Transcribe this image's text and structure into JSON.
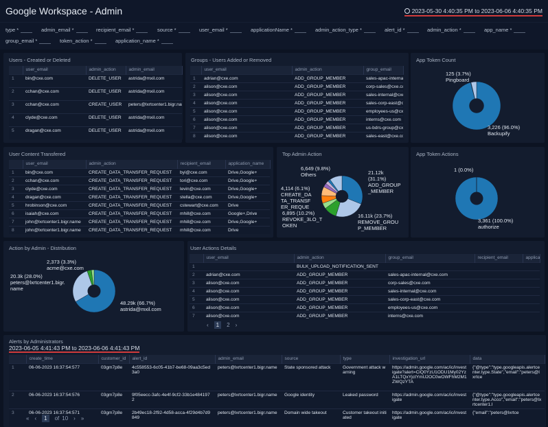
{
  "header": {
    "title": "Google Workspace - Admin",
    "time_range": "2023-05-30 4:40:35 PM to 2023-06-06 4:40:35 PM",
    "clock_icon": "clock-icon"
  },
  "filters": [
    "type *",
    "admin_email *",
    "recipient_email *",
    "source *",
    "user_email *",
    "applicationName *",
    "admin_action_type *",
    "alert_id *",
    "admin_action *",
    "app_name *",
    "group_email *",
    "token_action *",
    "application_name *"
  ],
  "users_created_deleted": {
    "title": "Users - Created or Deleted",
    "columns": [
      "",
      "user_email",
      "admin_action",
      "admin_email"
    ],
    "rows": [
      [
        "1",
        "bin@cxe.com",
        "DELETE_USER",
        "astrida@mxil.com"
      ],
      [
        "2",
        "cchan@cxe.com",
        "DELETE_USER",
        "astrida@mxil.com"
      ],
      [
        "3",
        "cchan@cxe.com",
        "CREATE_USER",
        "peters@lxrtcenter1.bigr.name"
      ],
      [
        "4",
        "clyde@cxe.com",
        "DELETE_USER",
        "astrida@mxil.com"
      ],
      [
        "5",
        "dragan@cxe.com",
        "DELETE_USER",
        "astrida@mxil.com"
      ]
    ]
  },
  "groups_added_removed": {
    "title": "Groups - Users Added or Removed",
    "columns": [
      "",
      "user_email",
      "admin_action",
      "group_email"
    ],
    "rows": [
      [
        "1",
        "adrian@cxe.com",
        "ADD_GROUP_MEMBER",
        "sales-apac-internal"
      ],
      [
        "2",
        "alison@cxe.com",
        "ADD_GROUP_MEMBER",
        "corp-sales@cxe.co"
      ],
      [
        "3",
        "alison@cxe.com",
        "ADD_GROUP_MEMBER",
        "sales-internal@cxe"
      ],
      [
        "4",
        "alison@cxe.com",
        "ADD_GROUP_MEMBER",
        "sales-corp-east@c"
      ],
      [
        "5",
        "alison@cxe.com",
        "ADD_GROUP_MEMBER",
        "employees-us@cxe"
      ],
      [
        "6",
        "alison@cxe.com",
        "ADD_GROUP_MEMBER",
        "interns@cxe.com"
      ],
      [
        "7",
        "alison@cxe.com",
        "ADD_GROUP_MEMBER",
        "us-bdrs-group@cxe"
      ],
      [
        "8",
        "alison@cxe.com",
        "ADD_GROUP_MEMBER",
        "sales-east@cxe.co"
      ]
    ]
  },
  "user_content_transferred": {
    "title": "User Content Transfered",
    "columns": [
      "",
      "user_email",
      "admin_action",
      "recipient_email",
      "application_name"
    ],
    "rows": [
      [
        "1",
        "bin@cxe.com",
        "CREATE_DATA_TRANSFER_REQUEST",
        "byi@cxe.com",
        "Drive,Google+"
      ],
      [
        "2",
        "cchan@cxe.com",
        "CREATE_DATA_TRANSFER_REQUEST",
        "tori@cxe.com",
        "Drive,Google+"
      ],
      [
        "3",
        "clyde@cxe.com",
        "CREATE_DATA_TRANSFER_REQUEST",
        "levin@cxe.com",
        "Drive,Google+"
      ],
      [
        "4",
        "dragan@cxe.com",
        "CREATE_DATA_TRANSFER_REQUEST",
        "stella@cxe.com",
        "Drive,Google+"
      ],
      [
        "5",
        "hrobinson@cxe.com",
        "CREATE_DATA_TRANSFER_REQUEST",
        "cstewart@cxe.com",
        "Drive"
      ],
      [
        "6",
        "isaiah@cxe.com",
        "CREATE_DATA_TRANSFER_REQUEST",
        "mhill@cxe.com",
        "Google+,Drive"
      ],
      [
        "7",
        "john@lxrtcenter1.bigr.name",
        "CREATE_DATA_TRANSFER_REQUEST",
        "mhill@cxe.com",
        "Drive,Google+"
      ],
      [
        "8",
        "john@lxrtcenter1.bigr.name",
        "CREATE_DATA_TRANSFER_REQUEST",
        "mhill@cxe.com",
        "Drive"
      ]
    ]
  },
  "user_actions_details": {
    "title": "User Actions Details",
    "columns": [
      "",
      "user_email",
      "admin_action",
      "group_email",
      "recipient_email",
      "applica"
    ],
    "rows": [
      [
        "1",
        "",
        "BULK_UPLOAD_NOTIFICATION_SENT",
        "",
        "",
        ""
      ],
      [
        "2",
        "adrian@cxe.com",
        "ADD_GROUP_MEMBER",
        "sales-apac-internal@cxe.com",
        "",
        ""
      ],
      [
        "3",
        "alison@cxe.com",
        "ADD_GROUP_MEMBER",
        "corp-sales@cxe.com",
        "",
        ""
      ],
      [
        "4",
        "alison@cxe.com",
        "ADD_GROUP_MEMBER",
        "sales-internal@cxe.com",
        "",
        ""
      ],
      [
        "5",
        "alison@cxe.com",
        "ADD_GROUP_MEMBER",
        "sales-corp-east@cxe.com",
        "",
        ""
      ],
      [
        "6",
        "alison@cxe.com",
        "ADD_GROUP_MEMBER",
        "employees-us@cxe.com",
        "",
        ""
      ],
      [
        "7",
        "alison@cxe.com",
        "ADD_GROUP_MEMBER",
        "interns@cxe.com",
        "",
        ""
      ]
    ],
    "pagination": {
      "prev": "‹",
      "pages": [
        "1",
        "2"
      ],
      "current": "1",
      "next": "›"
    }
  },
  "alerts": {
    "title": "Alerts by Administrators",
    "time_range": "2023-06-05 4:41:43 PM to 2023-06-06 4:41:43 PM",
    "columns": [
      "",
      "create_time",
      "customer_id",
      "alert_id",
      "admin_email",
      "source",
      "type",
      "investigation_url",
      "data"
    ],
    "rows": [
      [
        "1",
        "06-06-2023 16:37:54:577",
        "03gm7p8e",
        "4c558553-6c05-41b7-be68-09aa3c5ed3a0",
        "peters@lxrtcenter1.bigr.name",
        "State sponsored attack",
        "Government attack warning",
        "https://admin.google.com/ac/ic/investigate?alert=CiQ0YzU1ODU1My02YzA1LTQxYjctYmU2OC0wOWFhM2M1ZWQzYTA",
        "{\"@type\":\"type.googleapis.alertcenter.type.State\",\"email\":\"peters@lxrtce"
      ],
      [
        "2",
        "06-06-2023 16:37:54:576",
        "03gm7p8e",
        "9f05eecc-3afc-4e4f-9cf2-33b1e4841972",
        "peters@lxrtcenter1.bigr.name",
        "Google identity",
        "Leaked password",
        "https://admin.google.com/ac/ic/investigate",
        "{\"@type\":\"type.googleapis.alertcenter.type.Acco\",\"email\":\"peters@lxrtcenter1.l"
      ],
      [
        "3",
        "06-06-2023 16:37:54:571",
        "03gm7p8e",
        "2b49ec18-2f92-4d58-acca-4f29d4b7d9849",
        "peters@lxrtcenter1.bigr.name",
        "Domain wide takeout",
        "Customer takeout initiated",
        "https://admin.google.com/ac/ic/investigate",
        "{\"email\":\"peters@lxrtce"
      ]
    ],
    "pagination": {
      "first": "«",
      "prev": "‹",
      "current": "1",
      "of": "of",
      "total": "10",
      "next": "›",
      "last": "»"
    }
  },
  "chart_data": [
    {
      "id": "app-token-count",
      "type": "pie",
      "title": "App Token Count",
      "donut": true,
      "slices": [
        {
          "name": "Backupify",
          "value": 3226,
          "label": "3,226 (96.0%)",
          "color": "#1f77b4"
        },
        {
          "name": "",
          "value": 10,
          "color": "#1f77b4"
        },
        {
          "name": "Pingboard",
          "value": 125,
          "label": "125 (3.7%)",
          "color": "#aec7e8"
        }
      ]
    },
    {
      "id": "top-admin-action",
      "type": "pie",
      "title": "Top Admin Action",
      "donut": true,
      "slices": [
        {
          "name": "ADD_GROUP_MEMBER",
          "percent": 31.1,
          "label": "21.12k (31.1%)",
          "color": "#1f77b4"
        },
        {
          "name": "REMOVE_GROUP_MEMBER",
          "percent": 23.7,
          "label": "16.11k (23.7%)",
          "color": "#aec7e8"
        },
        {
          "name": "REVOKE_3LO_TOKEN",
          "percent": 10.2,
          "label": "6,895 (10.2%)",
          "color": "#2ca02c"
        },
        {
          "name": "",
          "percent": 4.5,
          "color": "#98df8a"
        },
        {
          "name": "CREATE_DATA_TRANSFER_REQUEST",
          "percent": 6.1,
          "label": "4,114 (6.1%)",
          "color": "#ff7f0e"
        },
        {
          "name": "",
          "percent": 7.1,
          "color": "#ffbb78"
        },
        {
          "name": "",
          "percent": 3,
          "color": "#9467bd"
        },
        {
          "name": "",
          "percent": 2.5,
          "color": "#c5b0d5"
        },
        {
          "name": "",
          "percent": 2,
          "color": "#1f77b4"
        },
        {
          "name": "Others",
          "percent": 9.8,
          "label": "6,649 (9.8%)",
          "color": "#aec7e8"
        }
      ]
    },
    {
      "id": "app-token-actions",
      "type": "pie",
      "title": "App Token Actions",
      "donut": true,
      "slices": [
        {
          "name": "authorize",
          "value": 3361,
          "label": "3,361 (100.0%)",
          "color": "#1f77b4"
        },
        {
          "name": "",
          "value": 1,
          "label": "1 (0.0%)",
          "color": "#aec7e8"
        }
      ]
    },
    {
      "id": "action-by-admin",
      "type": "pie",
      "title": "Action by Admin - Distribution",
      "donut": true,
      "slices": [
        {
          "name": "astrida@mxil.com",
          "percent": 66.7,
          "label": "48.29k (66.7%)",
          "color": "#1f77b4"
        },
        {
          "name": "peters@lxrtcenter1.bigr.name",
          "percent": 28.0,
          "label": "20.3k (28.0%)",
          "color": "#aec7e8"
        },
        {
          "name": "acme@cxe.com",
          "percent": 3.3,
          "label": "2,373 (3.3%)",
          "color": "#2ca02c"
        },
        {
          "name": "",
          "percent": 2.0,
          "color": "#98df8a"
        }
      ]
    }
  ]
}
